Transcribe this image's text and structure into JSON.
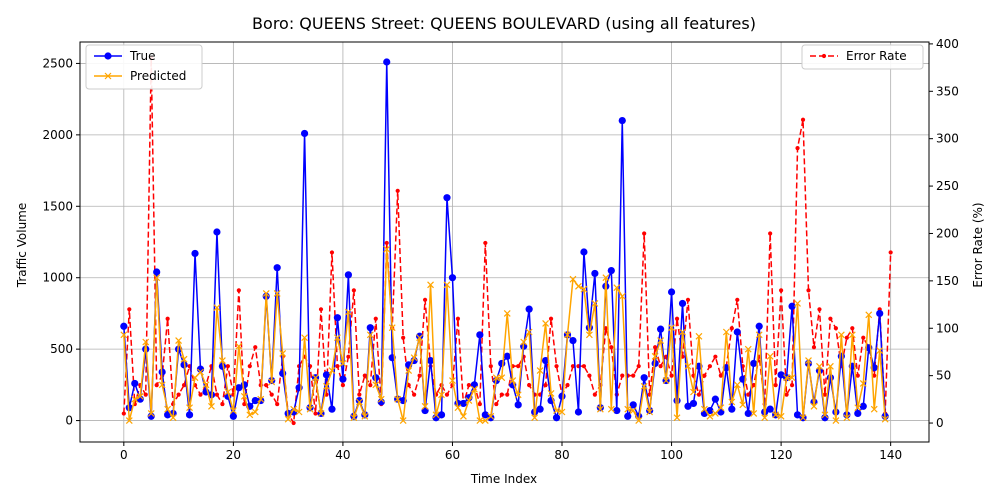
{
  "chart_data": {
    "type": "line",
    "title": "Boro: QUEENS Street: QUEENS BOULEVARD (using all features)",
    "xlabel": "Time Index",
    "ylabel": "Traffic Volume",
    "y2label": "Error Rate (%)",
    "xlim": [
      -8,
      147
    ],
    "ylim": [
      -150,
      2650
    ],
    "y2lim": [
      -20,
      402
    ],
    "xticks": [
      0,
      20,
      40,
      60,
      80,
      100,
      120,
      140
    ],
    "yticks": [
      0,
      500,
      1000,
      1500,
      2000,
      2500
    ],
    "y2ticks": [
      0,
      50,
      100,
      150,
      200,
      250,
      300,
      350,
      400
    ],
    "grid": true,
    "legend_left": "upper-left",
    "legend_right": "upper-right",
    "colors": {
      "true": "#0000ff",
      "predicted": "#ffa500",
      "error": "#ff0000"
    },
    "series": [
      {
        "name": "True",
        "axis": "left",
        "style": "solid",
        "marker": "circle",
        "values": [
          660,
          90,
          260,
          150,
          500,
          30,
          1040,
          340,
          40,
          50,
          500,
          390,
          40,
          1170,
          360,
          200,
          180,
          1320,
          380,
          170,
          30,
          230,
          250,
          100,
          140,
          140,
          870,
          280,
          1070,
          330,
          50,
          60,
          230,
          2010,
          90,
          300,
          50,
          320,
          80,
          720,
          290,
          1020,
          30,
          140,
          40,
          650,
          300,
          130,
          2510,
          440,
          150,
          140,
          390,
          420,
          590,
          70,
          420,
          20,
          40,
          1560,
          1000,
          120,
          120,
          160,
          250,
          600,
          40,
          20,
          280,
          400,
          450,
          250,
          110,
          520,
          780,
          60,
          80,
          420,
          140,
          20,
          170,
          600,
          560,
          60,
          1180,
          650,
          1030,
          90,
          940,
          1050,
          70,
          2100,
          30,
          110,
          30,
          300,
          70,
          400,
          640,
          280,
          900,
          140,
          820,
          100,
          120,
          380,
          50,
          70,
          150,
          60,
          370,
          80,
          620,
          290,
          50,
          400,
          660,
          60,
          80,
          40,
          320,
          300,
          800,
          40,
          20,
          400,
          130,
          350,
          20,
          300,
          60,
          450,
          40,
          380,
          50,
          100,
          510,
          370,
          750,
          30
        ]
      },
      {
        "name": "Predicted",
        "axis": "left",
        "style": "solid",
        "marker": "x",
        "values": [
          600,
          0,
          150,
          170,
          550,
          50,
          1000,
          250,
          80,
          20,
          560,
          430,
          90,
          300,
          340,
          250,
          100,
          790,
          420,
          200,
          70,
          520,
          170,
          40,
          60,
          150,
          890,
          270,
          890,
          470,
          10,
          80,
          60,
          580,
          80,
          300,
          50,
          240,
          350,
          580,
          400,
          760,
          20,
          130,
          30,
          600,
          250,
          150,
          1200,
          650,
          150,
          0,
          350,
          440,
          580,
          100,
          950,
          40,
          180,
          950,
          280,
          90,
          30,
          140,
          220,
          0,
          0,
          30,
          300,
          300,
          750,
          280,
          180,
          550,
          620,
          20,
          350,
          680,
          190,
          70,
          60,
          600,
          990,
          940,
          920,
          600,
          820,
          80,
          1000,
          80,
          930,
          870,
          80,
          70,
          0,
          240,
          60,
          450,
          560,
          280,
          650,
          20,
          620,
          380,
          200,
          590,
          80,
          30,
          50,
          90,
          620,
          130,
          250,
          110,
          500,
          50,
          600,
          20,
          450,
          40,
          30,
          300,
          300,
          820,
          20,
          420,
          100,
          380,
          40,
          380,
          0,
          600,
          20,
          600,
          90,
          260,
          740,
          80,
          490,
          10
        ]
      },
      {
        "name": "Error Rate",
        "axis": "right",
        "style": "dashed",
        "marker": "point",
        "values": [
          10,
          120,
          20,
          40,
          30,
          385,
          40,
          50,
          110,
          20,
          30,
          40,
          60,
          40,
          30,
          40,
          60,
          30,
          20,
          60,
          30,
          140,
          20,
          60,
          80,
          40,
          40,
          30,
          20,
          70,
          10,
          0,
          60,
          70,
          60,
          10,
          120,
          30,
          180,
          60,
          40,
          70,
          140,
          30,
          50,
          40,
          110,
          20,
          190,
          100,
          245,
          90,
          40,
          30,
          50,
          130,
          60,
          30,
          40,
          30,
          40,
          110,
          20,
          40,
          40,
          20,
          190,
          60,
          20,
          30,
          30,
          60,
          60,
          70,
          40,
          30,
          30,
          40,
          110,
          60,
          30,
          40,
          60,
          60,
          60,
          50,
          30,
          40,
          100,
          80,
          30,
          50,
          50,
          50,
          60,
          200,
          30,
          80,
          60,
          70,
          50,
          110,
          70,
          130,
          50,
          30,
          50,
          60,
          70,
          50,
          60,
          100,
          130,
          60,
          30,
          40,
          70,
          20,
          200,
          40,
          140,
          30,
          40,
          290,
          320,
          140,
          80,
          120,
          30,
          110,
          100,
          60,
          90,
          100,
          50,
          90,
          80,
          50,
          120,
          10,
          180
        ]
      }
    ]
  }
}
